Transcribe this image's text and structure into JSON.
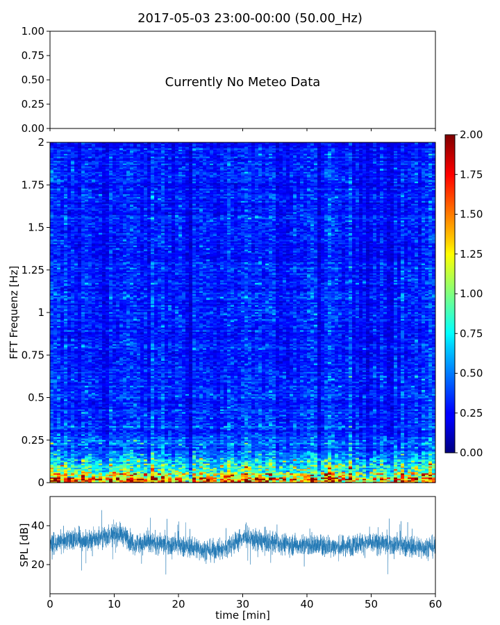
{
  "figure": {
    "title": "2017-05-03 23:00-00:00 (50.00_Hz)"
  },
  "chart_data": [
    {
      "type": "line",
      "name": "meteo-panel",
      "annotation": "Currently No Meteo Data",
      "ylim": [
        0,
        1
      ],
      "yticks": [
        "0.00",
        "0.25",
        "0.50",
        "0.75",
        "1.00"
      ],
      "xlim": [
        0,
        60
      ],
      "x_ticks_values": [
        0,
        10,
        20,
        30,
        40,
        50,
        60
      ]
    },
    {
      "type": "heatmap",
      "name": "spectrogram",
      "ylabel": "FFT Frequenz [Hz]",
      "ylim": [
        0,
        2
      ],
      "yticks": [
        {
          "v": 0,
          "label": "0"
        },
        {
          "v": 0.25,
          "label": "0.25"
        },
        {
          "v": 0.5,
          "label": "0.5"
        },
        {
          "v": 0.75,
          "label": "0.75"
        },
        {
          "v": 1,
          "label": "1"
        },
        {
          "v": 1.25,
          "label": "1.25"
        },
        {
          "v": 1.5,
          "label": "1.5"
        },
        {
          "v": 1.75,
          "label": "1.75"
        },
        {
          "v": 2,
          "label": "2"
        }
      ],
      "xlim": [
        0,
        60
      ],
      "colormap": "jet",
      "color_range": [
        0,
        2
      ],
      "colorbar_ticks": [
        "0.00",
        "0.25",
        "0.50",
        "0.75",
        "1.00",
        "1.25",
        "1.50",
        "1.75",
        "2.00"
      ]
    },
    {
      "type": "line",
      "name": "spl",
      "ylabel": "SPL [dB]",
      "xlabel": "time [min]",
      "xlim": [
        0,
        60
      ],
      "ylim": [
        5,
        55
      ],
      "yticks": [
        20,
        40
      ],
      "xticks": [
        0,
        10,
        20,
        30,
        40,
        50,
        60
      ],
      "line_color": "#1f77b4",
      "mean_profile": [
        {
          "x": 0,
          "y": 31
        },
        {
          "x": 3,
          "y": 33
        },
        {
          "x": 6,
          "y": 32
        },
        {
          "x": 9,
          "y": 35
        },
        {
          "x": 11,
          "y": 36
        },
        {
          "x": 13,
          "y": 31
        },
        {
          "x": 16,
          "y": 31
        },
        {
          "x": 19,
          "y": 30
        },
        {
          "x": 22,
          "y": 29
        },
        {
          "x": 25,
          "y": 27
        },
        {
          "x": 27,
          "y": 28
        },
        {
          "x": 30,
          "y": 34
        },
        {
          "x": 33,
          "y": 32
        },
        {
          "x": 36,
          "y": 31
        },
        {
          "x": 39,
          "y": 30
        },
        {
          "x": 42,
          "y": 30
        },
        {
          "x": 45,
          "y": 29
        },
        {
          "x": 48,
          "y": 31
        },
        {
          "x": 51,
          "y": 31
        },
        {
          "x": 54,
          "y": 30
        },
        {
          "x": 57,
          "y": 29
        },
        {
          "x": 60,
          "y": 29
        }
      ],
      "spread_db": 5.5
    }
  ]
}
